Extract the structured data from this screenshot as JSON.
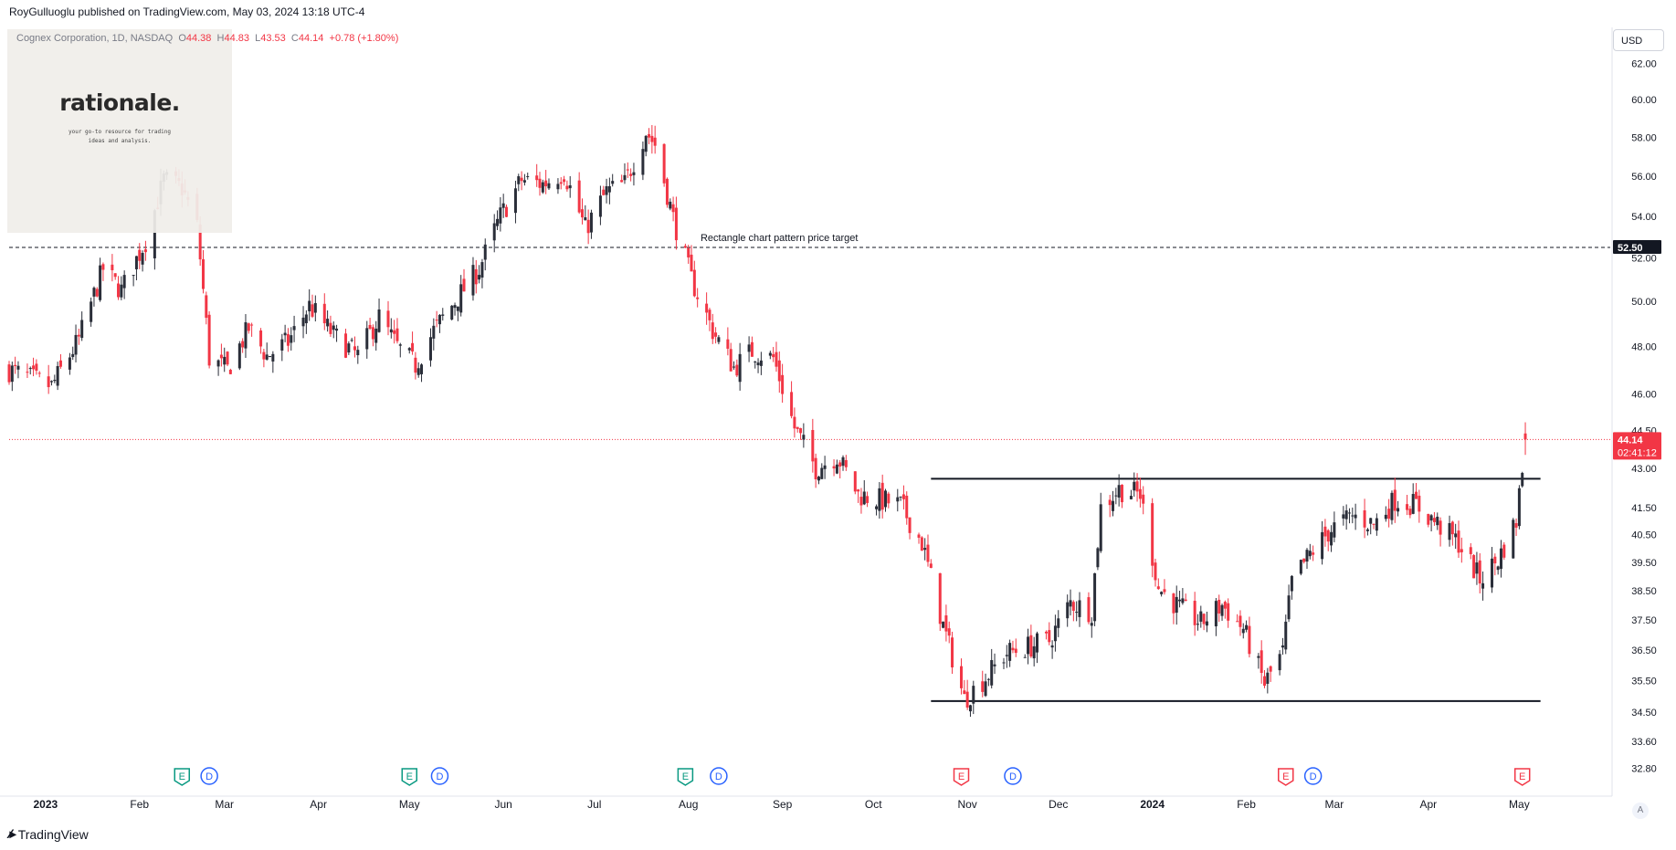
{
  "header": {
    "author": "RoyGulluoglu published on TradingView.com",
    "separator": ",",
    "timestamp": "May 03, 2024 13:18 UTC-4"
  },
  "legend": {
    "symbol": "Cognex Corporation, 1D, NASDAQ",
    "o_label": "O",
    "o_value": "44.38",
    "h_label": "H",
    "h_value": "44.83",
    "l_label": "L",
    "l_value": "43.53",
    "c_label": "C",
    "c_value": "44.14",
    "change": "+0.78 (+1.80%)"
  },
  "logo": {
    "name": "rationale.",
    "tagline": "your go-to resource for trading ideas and analysis."
  },
  "currency": "USD",
  "footer": {
    "brand": "TradingView",
    "icon": "tradingview-logo-icon"
  },
  "auto_scale_label": "A",
  "colors": {
    "up": "#2a2e39",
    "down": "#f23645",
    "price_line": "#f23645",
    "earnings_future": "#f23645",
    "earnings_past": "#089981",
    "dividend": "#2962ff"
  },
  "chart_data": {
    "type": "candlestick",
    "title": "Cognex Corporation, 1D, NASDAQ",
    "y_ticks": [
      32.8,
      33.6,
      34.5,
      35.5,
      36.5,
      37.5,
      38.5,
      39.5,
      40.5,
      41.5,
      43.0,
      44.5,
      46.0,
      48.0,
      50.0,
      52.0,
      54.0,
      56.0,
      58.0,
      60.0,
      62.0
    ],
    "y_tick_labels": [
      "32.80",
      "33.60",
      "34.50",
      "35.50",
      "36.50",
      "37.50",
      "38.50",
      "39.50",
      "40.50",
      "41.50",
      "43.00",
      "44.50",
      "46.00",
      "48.00",
      "50.00",
      "52.00",
      "54.00",
      "56.00",
      "58.00",
      "60.00",
      "62.00"
    ],
    "y_scale": "log",
    "ylim": [
      32.3,
      63.0
    ],
    "x_labels": [
      {
        "label": "2023",
        "date": "2023-01-01",
        "bold": true
      },
      {
        "label": "Feb",
        "date": "2023-02-01"
      },
      {
        "label": "Mar",
        "date": "2023-03-01"
      },
      {
        "label": "Apr",
        "date": "2023-04-01"
      },
      {
        "label": "May",
        "date": "2023-05-01"
      },
      {
        "label": "Jun",
        "date": "2023-06-01"
      },
      {
        "label": "Jul",
        "date": "2023-07-01"
      },
      {
        "label": "Aug",
        "date": "2023-08-01"
      },
      {
        "label": "Sep",
        "date": "2023-09-01"
      },
      {
        "label": "Oct",
        "date": "2023-10-01"
      },
      {
        "label": "Nov",
        "date": "2023-11-01"
      },
      {
        "label": "Dec",
        "date": "2023-12-01"
      },
      {
        "label": "2024",
        "date": "2024-01-01",
        "bold": true
      },
      {
        "label": "Feb",
        "date": "2024-02-01"
      },
      {
        "label": "Mar",
        "date": "2024-03-01"
      },
      {
        "label": "Apr",
        "date": "2024-04-01"
      },
      {
        "label": "May",
        "date": "2024-05-01"
      }
    ],
    "xlim": [
      "2022-12-20",
      "2024-05-31"
    ],
    "anchors": [
      [
        "2022-12-20",
        47.0
      ],
      [
        "2023-01-03",
        46.3
      ],
      [
        "2023-01-12",
        48.3
      ],
      [
        "2023-01-20",
        51.5
      ],
      [
        "2023-01-26",
        50.5
      ],
      [
        "2023-02-03",
        52.8
      ],
      [
        "2023-02-09",
        55.8
      ],
      [
        "2023-02-15",
        55.4
      ],
      [
        "2023-02-20",
        53.5
      ],
      [
        "2023-02-24",
        47.5
      ],
      [
        "2023-03-02",
        47.0
      ],
      [
        "2023-03-09",
        48.8
      ],
      [
        "2023-03-15",
        47.6
      ],
      [
        "2023-03-22",
        48.2
      ],
      [
        "2023-03-29",
        49.8
      ],
      [
        "2023-04-06",
        48.5
      ],
      [
        "2023-04-14",
        47.6
      ],
      [
        "2023-04-21",
        49.3
      ],
      [
        "2023-04-27",
        48.0
      ],
      [
        "2023-05-03",
        47.2
      ],
      [
        "2023-05-09",
        48.7
      ],
      [
        "2023-05-16",
        50.0
      ],
      [
        "2023-05-24",
        51.5
      ],
      [
        "2023-05-31",
        54.0
      ],
      [
        "2023-06-07",
        55.8
      ],
      [
        "2023-06-14",
        55.6
      ],
      [
        "2023-06-21",
        56.2
      ],
      [
        "2023-06-28",
        53.4
      ],
      [
        "2023-07-05",
        55.2
      ],
      [
        "2023-07-11",
        55.6
      ],
      [
        "2023-07-18",
        58.3
      ],
      [
        "2023-07-21",
        57.6
      ],
      [
        "2023-07-27",
        53.9
      ],
      [
        "2023-08-02",
        51.0
      ],
      [
        "2023-08-09",
        48.7
      ],
      [
        "2023-08-16",
        47.1
      ],
      [
        "2023-08-22",
        47.8
      ],
      [
        "2023-08-29",
        47.5
      ],
      [
        "2023-09-05",
        44.6
      ],
      [
        "2023-09-12",
        43.0
      ],
      [
        "2023-09-19",
        43.5
      ],
      [
        "2023-09-26",
        42.0
      ],
      [
        "2023-10-03",
        41.8
      ],
      [
        "2023-10-10",
        41.6
      ],
      [
        "2023-10-17",
        40.2
      ],
      [
        "2023-10-24",
        37.3
      ],
      [
        "2023-10-31",
        34.9
      ],
      [
        "2023-11-07",
        35.6
      ],
      [
        "2023-11-14",
        36.4
      ],
      [
        "2023-11-21",
        36.6
      ],
      [
        "2023-11-28",
        36.8
      ],
      [
        "2023-12-05",
        38.1
      ],
      [
        "2023-12-12",
        37.8
      ],
      [
        "2023-12-15",
        41.5
      ],
      [
        "2023-12-21",
        42.2
      ],
      [
        "2023-12-28",
        42.0
      ],
      [
        "2024-01-03",
        38.6
      ],
      [
        "2024-01-10",
        37.9
      ],
      [
        "2024-01-17",
        37.4
      ],
      [
        "2024-01-24",
        38.0
      ],
      [
        "2024-01-31",
        37.2
      ],
      [
        "2024-02-07",
        35.4
      ],
      [
        "2024-02-13",
        36.4
      ],
      [
        "2024-02-16",
        38.8
      ],
      [
        "2024-02-22",
        39.8
      ],
      [
        "2024-02-29",
        40.7
      ],
      [
        "2024-03-07",
        41.2
      ],
      [
        "2024-03-14",
        40.9
      ],
      [
        "2024-03-21",
        41.8
      ],
      [
        "2024-03-28",
        41.6
      ],
      [
        "2024-04-04",
        40.9
      ],
      [
        "2024-04-11",
        40.2
      ],
      [
        "2024-04-18",
        38.9
      ],
      [
        "2024-04-24",
        39.6
      ],
      [
        "2024-04-30",
        41.0
      ],
      [
        "2024-05-03",
        44.1
      ]
    ],
    "last_candle": {
      "date": "2024-05-03",
      "open": 44.38,
      "high": 44.83,
      "low": 43.53,
      "close": 44.14
    },
    "horizontal_lines": [
      {
        "name": "price-target",
        "price": 52.5,
        "style": "dashed",
        "start": "2022-12-20",
        "end": "2024-05-31",
        "label": "Rectangle chart pattern price target"
      },
      {
        "name": "rectangle-top",
        "price": 42.6,
        "style": "solid",
        "start": "2023-10-20",
        "end": "2024-05-08"
      },
      {
        "name": "rectangle-bottom",
        "price": 34.85,
        "style": "solid",
        "start": "2023-10-20",
        "end": "2024-05-08"
      }
    ],
    "price_badges": [
      {
        "name": "target",
        "value": "52.50",
        "price": 52.5,
        "bg": "#131722"
      },
      {
        "name": "last-price",
        "value": "44.14",
        "price": 44.14,
        "bg": "#f23645",
        "countdown": "02:41:12"
      }
    ],
    "events": [
      {
        "type": "earnings",
        "glyph": "E",
        "date": "2023-02-15",
        "past": true
      },
      {
        "type": "dividend",
        "glyph": "D",
        "date": "2023-02-24"
      },
      {
        "type": "earnings",
        "glyph": "E",
        "date": "2023-05-01",
        "past": true
      },
      {
        "type": "dividend",
        "glyph": "D",
        "date": "2023-05-11"
      },
      {
        "type": "earnings",
        "glyph": "E",
        "date": "2023-07-31",
        "past": true
      },
      {
        "type": "dividend",
        "glyph": "D",
        "date": "2023-08-11"
      },
      {
        "type": "earnings",
        "glyph": "E",
        "date": "2023-10-30",
        "past": false
      },
      {
        "type": "dividend",
        "glyph": "D",
        "date": "2023-11-16"
      },
      {
        "type": "earnings",
        "glyph": "E",
        "date": "2024-02-14",
        "past": false
      },
      {
        "type": "dividend",
        "glyph": "D",
        "date": "2024-02-23"
      },
      {
        "type": "earnings",
        "glyph": "E",
        "date": "2024-05-02",
        "past": false
      }
    ]
  }
}
